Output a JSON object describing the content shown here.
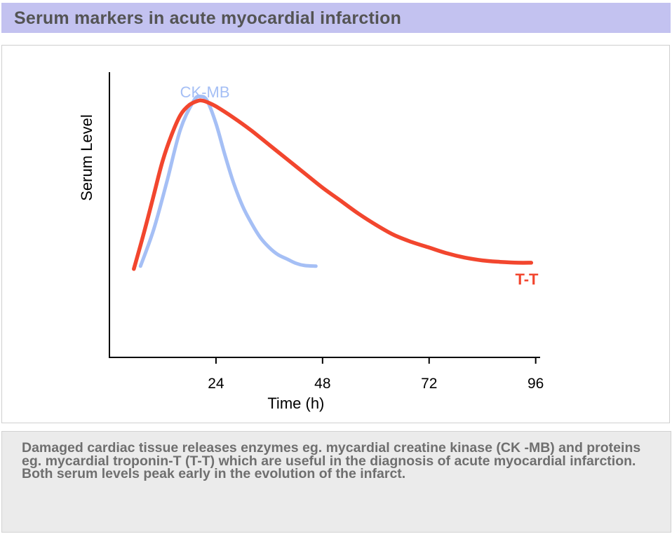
{
  "header": {
    "title": "Serum markers in acute myocardial infarction"
  },
  "caption": {
    "text": "Damaged cardiac tissue releases enzymes eg. mycardial creatine kinase (CK -MB) and proteins eg. mycardial troponin-T (T-T) which are useful in the diagnosis of acute myocardial infarction. Both serum levels peak early in the evolution of the infarct."
  },
  "colors": {
    "ckmb": "#a5bff5",
    "tt": "#f2462e",
    "header_bg": "#c3c2f0",
    "axis": "#000000"
  },
  "chart_data": {
    "type": "line",
    "title": "",
    "xlabel": "Time (h)",
    "ylabel": "Serum Level",
    "xlim": [
      0,
      97
    ],
    "ylim": [
      0,
      100
    ],
    "xticks": [
      24,
      48,
      72,
      96
    ],
    "xtick_labels": [
      "24",
      "48",
      "72",
      "96"
    ],
    "grid": false,
    "series": [
      {
        "name": "CK-MB",
        "color": "#a5bff5",
        "x": [
          7,
          10,
          13,
          16,
          19,
          20.5,
          22,
          24,
          26,
          28,
          30,
          32,
          34,
          36,
          38,
          40,
          42,
          44,
          46.5
        ],
        "y": [
          32,
          45,
          62,
          80,
          90,
          91.5,
          90,
          82,
          71,
          61,
          53,
          47,
          42,
          38.5,
          36,
          34.5,
          33,
          32.2,
          32
        ]
      },
      {
        "name": "T-T",
        "color": "#f2462e",
        "x": [
          5.5,
          8,
          10,
          12,
          14,
          16,
          18,
          20,
          21,
          22,
          24,
          28,
          32,
          36,
          40,
          44,
          48,
          52,
          56,
          60,
          64,
          68,
          72,
          76,
          80,
          84,
          88,
          92,
          95
        ],
        "y": [
          31,
          45,
          57,
          69,
          78,
          85,
          88.5,
          90,
          90,
          89.5,
          88,
          84,
          79.5,
          74.5,
          69.5,
          64.5,
          59.5,
          55,
          50.5,
          46.5,
          43,
          40.5,
          38.5,
          36.5,
          35,
          34,
          33.5,
          33.2,
          33.2
        ]
      }
    ],
    "annotations": [
      "CK-MB",
      "T-T"
    ]
  }
}
